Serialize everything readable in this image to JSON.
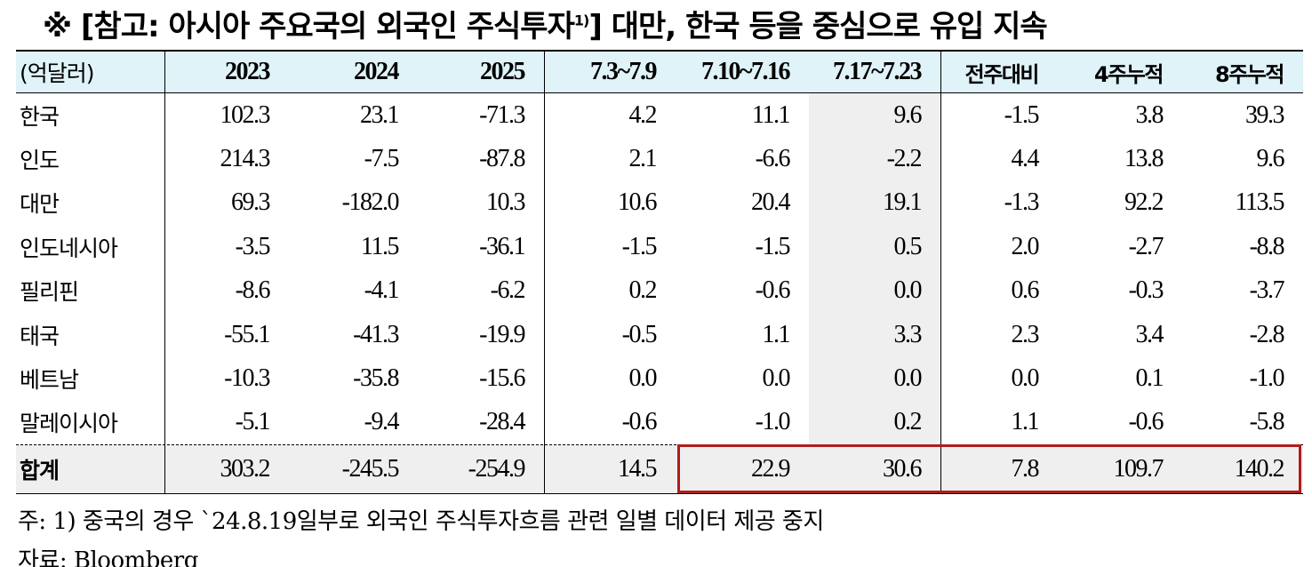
{
  "header": {
    "title_main": "※ [참고: 아시아 주요국의 외국인 주식투자",
    "title_sup": "1)",
    "title_end": "] 대만, 한국 등을 중심으로 유입 지속"
  },
  "table": {
    "columns": [
      "(억달러)",
      "2023",
      "2024",
      "2025",
      "7.3~7.9",
      "7.10~7.16",
      "7.17~7.23",
      "전주대비",
      "4주누적",
      "8주누적"
    ],
    "rows": [
      [
        "한국",
        "102.3",
        "23.1",
        "-71.3",
        "4.2",
        "11.1",
        "9.6",
        "-1.5",
        "3.8",
        "39.3"
      ],
      [
        "인도",
        "214.3",
        "-7.5",
        "-87.8",
        "2.1",
        "-6.6",
        "-2.2",
        "4.4",
        "13.8",
        "9.6"
      ],
      [
        "대만",
        "69.3",
        "-182.0",
        "10.3",
        "10.6",
        "20.4",
        "19.1",
        "-1.3",
        "92.2",
        "113.5"
      ],
      [
        "인도네시아",
        "-3.5",
        "11.5",
        "-36.1",
        "-1.5",
        "-1.5",
        "0.5",
        "2.0",
        "-2.7",
        "-8.8"
      ],
      [
        "필리핀",
        "-8.6",
        "-4.1",
        "-6.2",
        "0.2",
        "-0.6",
        "0.0",
        "0.6",
        "-0.3",
        "-3.7"
      ],
      [
        "태국",
        "-55.1",
        "-41.3",
        "-19.9",
        "-0.5",
        "1.1",
        "3.3",
        "2.3",
        "3.4",
        "-2.8"
      ],
      [
        "베트남",
        "-10.3",
        "-35.8",
        "-15.6",
        "0.0",
        "0.0",
        "0.0",
        "0.0",
        "0.1",
        "-1.0"
      ],
      [
        "말레이시아",
        "-5.1",
        "-9.4",
        "-28.4",
        "-0.6",
        "-1.0",
        "0.2",
        "1.1",
        "-0.6",
        "-5.8"
      ]
    ],
    "total": [
      "합계",
      "303.2",
      "-245.5",
      "-254.9",
      "14.5",
      "22.9",
      "30.6",
      "7.8",
      "109.7",
      "140.2"
    ]
  },
  "notes": [
    "주: 1) 중국의 경우 `24.8.19일부로 외국인 주식투자흐름 관련 일별 데이터 제공 중지",
    "자료: Bloomberg"
  ]
}
